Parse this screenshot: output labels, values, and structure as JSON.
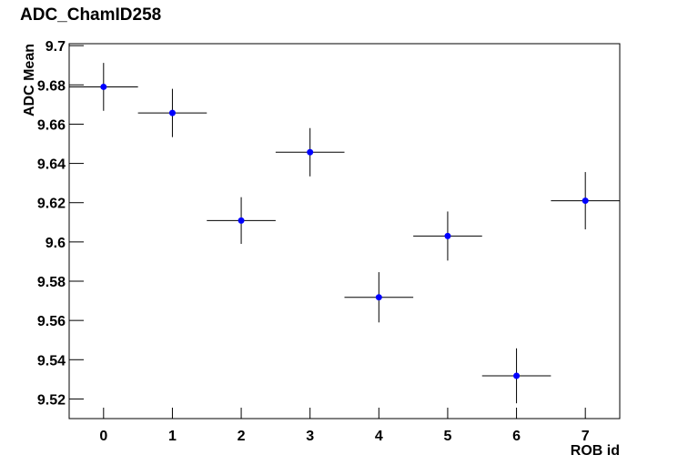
{
  "chart_data": {
    "type": "errorbar",
    "title": "ADC_ChamID258",
    "x_label": "ROB id",
    "y_label": "ADC Mean",
    "x": [
      0,
      1,
      2,
      3,
      4,
      5,
      6,
      7
    ],
    "values": [
      9.679,
      9.6657,
      9.6109,
      9.6457,
      9.5718,
      9.603,
      9.5318,
      9.621
    ],
    "errors": [
      0.0122,
      0.0123,
      0.0119,
      0.0123,
      0.0128,
      0.0125,
      0.014,
      0.0146
    ],
    "x_errors": [
      0.5,
      0.5,
      0.5,
      0.5,
      0.5,
      0.5,
      0.5,
      0.5
    ],
    "color": "#0000ff",
    "xlim": [
      -0.5,
      7.5
    ],
    "xticks": [
      0,
      1,
      2,
      3,
      4,
      5,
      6,
      7
    ],
    "ylim": [
      9.51,
      9.701
    ],
    "yticks": [
      9.52,
      9.54,
      9.56,
      9.58,
      9.6,
      9.62,
      9.64,
      9.66,
      9.68,
      9.7
    ]
  }
}
